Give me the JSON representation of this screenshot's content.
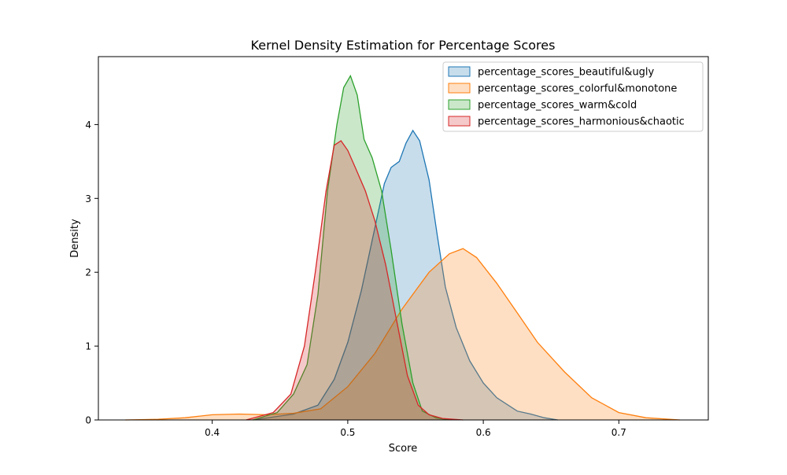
{
  "chart_data": {
    "type": "area",
    "title": "Kernel Density Estimation for Percentage Scores",
    "xlabel": "Score",
    "ylabel": "Density",
    "xlim": [
      0.316,
      0.766
    ],
    "ylim": [
      0,
      4.92
    ],
    "xticks": [
      0.4,
      0.5,
      0.6,
      0.7
    ],
    "xtick_labels": [
      "0.4",
      "0.5",
      "0.6",
      "0.7"
    ],
    "yticks": [
      0,
      1,
      2,
      3,
      4
    ],
    "ytick_labels": [
      "0",
      "1",
      "2",
      "3",
      "4"
    ],
    "grid": false,
    "legend_position": "top-right",
    "series": [
      {
        "name": "percentage_scores_beautiful&ugly",
        "color": "#1f77b4",
        "x": [
          0.43,
          0.46,
          0.478,
          0.49,
          0.5,
          0.51,
          0.52,
          0.527,
          0.532,
          0.538,
          0.543,
          0.548,
          0.553,
          0.56,
          0.566,
          0.572,
          0.58,
          0.59,
          0.6,
          0.61,
          0.625,
          0.635,
          0.645,
          0.655
        ],
        "y": [
          0.0,
          0.08,
          0.2,
          0.55,
          1.05,
          1.75,
          2.6,
          3.2,
          3.42,
          3.5,
          3.75,
          3.92,
          3.78,
          3.25,
          2.5,
          1.8,
          1.25,
          0.8,
          0.5,
          0.3,
          0.12,
          0.08,
          0.03,
          0.0
        ]
      },
      {
        "name": "percentage_scores_colorful&monotone",
        "color": "#ff7f0e",
        "x": [
          0.336,
          0.36,
          0.38,
          0.4,
          0.42,
          0.44,
          0.46,
          0.48,
          0.5,
          0.52,
          0.54,
          0.56,
          0.575,
          0.585,
          0.595,
          0.61,
          0.625,
          0.64,
          0.66,
          0.68,
          0.7,
          0.72,
          0.745
        ],
        "y": [
          0.0,
          0.01,
          0.03,
          0.07,
          0.08,
          0.07,
          0.09,
          0.15,
          0.45,
          0.9,
          1.5,
          2.0,
          2.25,
          2.32,
          2.2,
          1.85,
          1.45,
          1.05,
          0.65,
          0.3,
          0.1,
          0.03,
          0.0
        ]
      },
      {
        "name": "percentage_scores_warm&cold",
        "color": "#2ca02c",
        "x": [
          0.43,
          0.448,
          0.46,
          0.47,
          0.478,
          0.485,
          0.492,
          0.497,
          0.502,
          0.507,
          0.512,
          0.518,
          0.525,
          0.532,
          0.54,
          0.548,
          0.555,
          0.565,
          0.575
        ],
        "y": [
          0.0,
          0.1,
          0.35,
          0.75,
          1.7,
          3.1,
          4.0,
          4.5,
          4.66,
          4.4,
          3.8,
          3.55,
          3.1,
          2.3,
          1.3,
          0.5,
          0.12,
          0.03,
          0.0
        ]
      },
      {
        "name": "percentage_scores_harmonious&chaotic",
        "color": "#d62728",
        "x": [
          0.425,
          0.445,
          0.458,
          0.468,
          0.476,
          0.484,
          0.49,
          0.495,
          0.5,
          0.506,
          0.513,
          0.52,
          0.528,
          0.536,
          0.544,
          0.552,
          0.56,
          0.57,
          0.585
        ],
        "y": [
          0.0,
          0.1,
          0.35,
          1.0,
          2.0,
          3.1,
          3.72,
          3.78,
          3.65,
          3.4,
          3.1,
          2.7,
          2.1,
          1.35,
          0.6,
          0.2,
          0.07,
          0.02,
          0.0
        ]
      }
    ]
  }
}
